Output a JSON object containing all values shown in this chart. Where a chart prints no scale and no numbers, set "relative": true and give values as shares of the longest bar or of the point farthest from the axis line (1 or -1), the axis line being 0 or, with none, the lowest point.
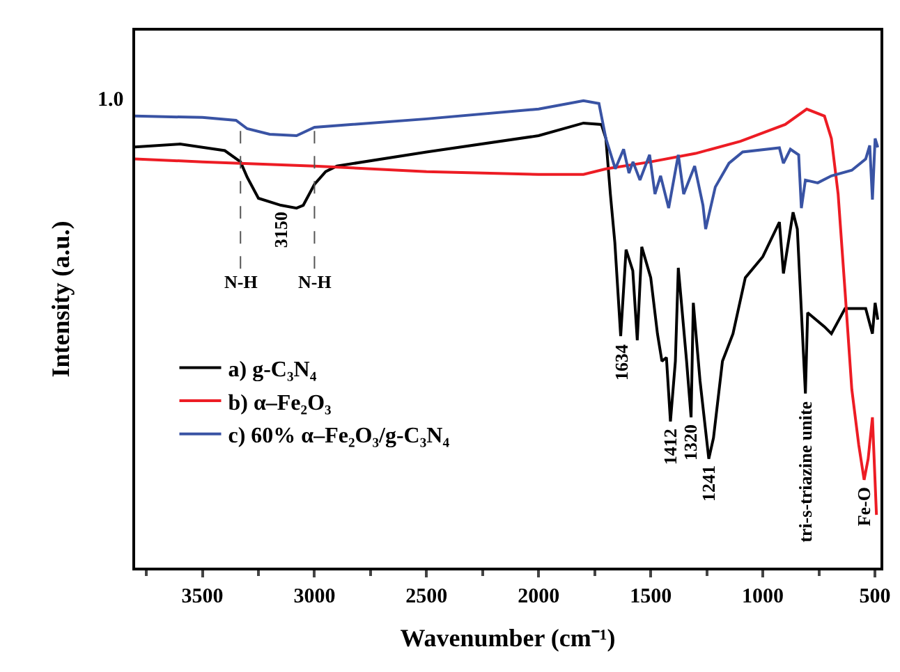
{
  "chart_data": {
    "type": "line",
    "relative": true,
    "xlabel": "Wavenumber (cm⁻¹)",
    "ylabel": "Intensity (a.u.)",
    "xlim": [
      3800,
      475
    ],
    "xticks": [
      3500,
      3000,
      2500,
      2000,
      1500,
      1000,
      500
    ],
    "legend": "left",
    "grid": false,
    "marker": "none",
    "line_style": "solid",
    "series": [
      {
        "name": "a) g-C₃N₄",
        "color": "#000000",
        "x": [
          3800,
          3600,
          3400,
          3330,
          3300,
          3250,
          3150,
          3080,
          3050,
          3000,
          2950,
          2900,
          2500,
          2000,
          1800,
          1720,
          1700,
          1680,
          1660,
          1634,
          1610,
          1580,
          1560,
          1540,
          1500,
          1470,
          1450,
          1430,
          1412,
          1390,
          1377,
          1340,
          1320,
          1310,
          1280,
          1241,
          1220,
          1180,
          1133,
          1078,
          1000,
          926,
          908,
          865,
          846,
          810,
          800,
          725,
          694,
          633,
          603,
          541,
          511,
          499,
          487
        ],
        "values": [
          0.901,
          0.907,
          0.893,
          0.869,
          0.836,
          0.791,
          0.776,
          0.77,
          0.776,
          0.821,
          0.848,
          0.86,
          0.89,
          0.925,
          0.952,
          0.949,
          0.919,
          0.8,
          0.696,
          0.496,
          0.681,
          0.636,
          0.487,
          0.687,
          0.621,
          0.501,
          0.442,
          0.45,
          0.313,
          0.442,
          0.642,
          0.442,
          0.322,
          0.567,
          0.4,
          0.233,
          0.278,
          0.442,
          0.501,
          0.621,
          0.666,
          0.74,
          0.63,
          0.761,
          0.725,
          0.373,
          0.546,
          0.516,
          0.501,
          0.555,
          0.555,
          0.555,
          0.501,
          0.567,
          0.531
        ]
      },
      {
        "name": "b) α–Fe₂O₃",
        "color": "#ed1c24",
        "x": [
          3800,
          3500,
          3000,
          2500,
          2000,
          1800,
          1700,
          1500,
          1300,
          1100,
          900,
          804,
          725,
          694,
          664,
          633,
          603,
          572,
          548,
          530,
          511,
          493
        ],
        "values": [
          0.875,
          0.869,
          0.86,
          0.848,
          0.842,
          0.842,
          0.854,
          0.869,
          0.887,
          0.913,
          0.949,
          0.982,
          0.967,
          0.919,
          0.8,
          0.591,
          0.382,
          0.263,
          0.188,
          0.233,
          0.322,
          0.113
        ]
      },
      {
        "name": "c) 60% α–Fe₂O₃/g-C₃N₄",
        "color": "#3953a4",
        "x": [
          3800,
          3500,
          3350,
          3300,
          3200,
          3080,
          3000,
          2500,
          2000,
          1800,
          1731,
          1700,
          1658,
          1621,
          1597,
          1579,
          1548,
          1505,
          1481,
          1456,
          1420,
          1377,
          1353,
          1304,
          1267,
          1255,
          1212,
          1151,
          1090,
          926,
          908,
          877,
          840,
          828,
          810,
          755,
          694,
          603,
          541,
          523,
          511,
          499,
          487
        ],
        "values": [
          0.967,
          0.964,
          0.958,
          0.94,
          0.928,
          0.925,
          0.943,
          0.961,
          0.982,
          1,
          0.994,
          0.919,
          0.854,
          0.896,
          0.845,
          0.869,
          0.83,
          0.884,
          0.8,
          0.839,
          0.77,
          0.884,
          0.8,
          0.86,
          0.776,
          0.725,
          0.815,
          0.866,
          0.89,
          0.899,
          0.866,
          0.896,
          0.884,
          0.77,
          0.83,
          0.824,
          0.839,
          0.851,
          0.875,
          0.904,
          0.788,
          0.919,
          0.9
        ]
      }
    ],
    "ref_lines": [
      {
        "axis": "x",
        "value": 3330,
        "label": "N-H",
        "line_style": "dashed",
        "color": "#555555"
      },
      {
        "axis": "x",
        "value": 3000,
        "label": "N-H",
        "line_style": "dashed",
        "color": "#555555"
      }
    ],
    "annotations": [
      "1.0",
      {
        "text": "3150",
        "x": 3150,
        "y": 0.776
      },
      {
        "text": "1634",
        "x": 1634,
        "y": 0.496
      },
      {
        "text": "1412",
        "x": 1412,
        "y": 0.313
      },
      {
        "text": "1320",
        "x": 1320,
        "y": 0.322
      },
      {
        "text": "1241",
        "x": 1241,
        "y": 0.233
      },
      {
        "text": "tri-s-triazine unite",
        "x": 810,
        "y": 0.373
      },
      {
        "text": "Fe-O",
        "x": 548,
        "y": 0.188
      }
    ]
  }
}
